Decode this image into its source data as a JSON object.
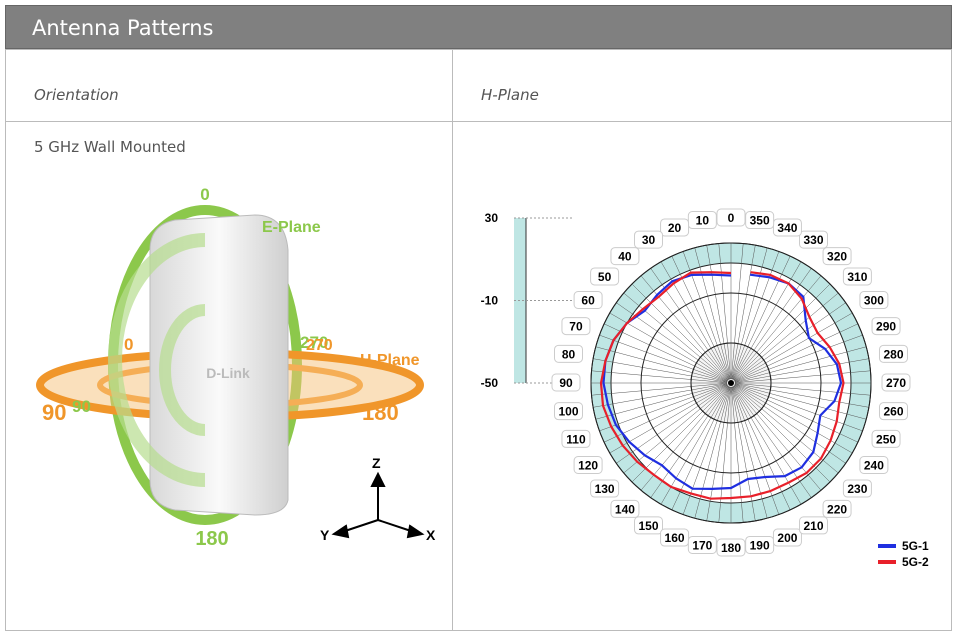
{
  "header": {
    "title": "Antenna Patterns"
  },
  "table": {
    "columns": [
      "Orientation",
      "H-Plane"
    ],
    "row_label": "5 GHz Wall Mounted"
  },
  "orientation_figure": {
    "e_plane": {
      "label": "E-Plane",
      "angles": [
        "0",
        "90",
        "180",
        "270"
      ]
    },
    "h_plane": {
      "label": "H-Plane",
      "angles": [
        "0",
        "90",
        "180",
        "270"
      ]
    },
    "brand": "D-Link",
    "axes": [
      "Z",
      "Y",
      "X"
    ]
  },
  "h_plane_chart": {
    "type": "polar",
    "angles": [
      0,
      10,
      20,
      30,
      40,
      50,
      60,
      70,
      80,
      90,
      100,
      110,
      120,
      130,
      140,
      150,
      160,
      170,
      180,
      190,
      200,
      210,
      220,
      230,
      240,
      250,
      260,
      270,
      280,
      290,
      300,
      310,
      320,
      330,
      340,
      350
    ],
    "rlim": [
      -50,
      30
    ],
    "rticks": [
      30,
      -10,
      -50
    ],
    "series": [
      {
        "name": "5G-1",
        "color": "#1f2fe0",
        "values": [
          4,
          6,
          10,
          12,
          10,
          8,
          14,
          18,
          20,
          20,
          18,
          16,
          12,
          8,
          4,
          6,
          8,
          4,
          2,
          -4,
          -2,
          4,
          6,
          4,
          -2,
          -6,
          2,
          6,
          4,
          -2,
          -10,
          -4,
          8,
          10,
          8,
          6
        ]
      },
      {
        "name": "5G-2",
        "color": "#e8202a",
        "values": [
          6,
          8,
          12,
          10,
          8,
          10,
          14,
          18,
          20,
          22,
          22,
          20,
          18,
          16,
          14,
          14,
          12,
          12,
          10,
          10,
          10,
          10,
          12,
          12,
          10,
          8,
          6,
          8,
          6,
          2,
          -2,
          0,
          6,
          10,
          10,
          8
        ]
      }
    ]
  }
}
